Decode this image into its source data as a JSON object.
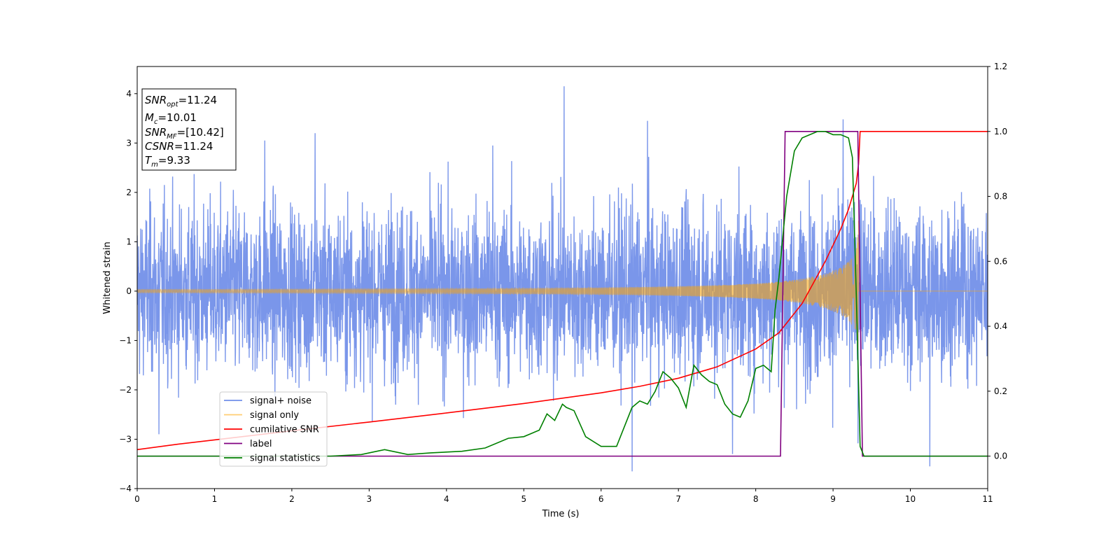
{
  "chart_data": {
    "type": "line",
    "xlabel": "Time (s)",
    "ylabel": "Whitened strain",
    "xlim": [
      0,
      11
    ],
    "ylim": [
      -4.0,
      4.55
    ],
    "y2lim": [
      -0.1,
      1.2
    ],
    "xticks": [
      0,
      1,
      2,
      3,
      4,
      5,
      6,
      7,
      8,
      9,
      10,
      11
    ],
    "yticks": [
      -4,
      -3,
      -2,
      -1,
      0,
      1,
      2,
      3,
      4
    ],
    "y2ticks": [
      "0.0",
      "0.2",
      "0.4",
      "0.6",
      "0.8",
      "1.0",
      "1.2"
    ],
    "legend_position": "lower-left",
    "annotation": {
      "lines": [
        {
          "sym": "SNR",
          "sub": "opt",
          "val": "=11.24"
        },
        {
          "sym": "M",
          "sub": "c",
          "val": "=10.01"
        },
        {
          "sym": "SNR",
          "sub": "MF",
          "val": "=[10.42]"
        },
        {
          "sym": "CSNR",
          "sub": "",
          "val": "=11.24"
        },
        {
          "sym": "T",
          "sub": "m",
          "val": "=9.33"
        }
      ]
    },
    "series": [
      {
        "name": "signal+ noise",
        "color": "#4169e1",
        "axis": "left",
        "description_points": {
          "noise_sigma": 0.85,
          "min_approx": -3.65,
          "max_approx": 4.15,
          "spikes": [
            [
              5.52,
              4.15
            ],
            [
              6.4,
              -3.65
            ],
            [
              9.13,
              3.48
            ],
            [
              0.28,
              -2.9
            ],
            [
              7.7,
              -3.3
            ],
            [
              10.25,
              -3.55
            ],
            [
              2.3,
              3.2
            ],
            [
              4.6,
              2.95
            ],
            [
              6.6,
              3.45
            ],
            [
              1.65,
              3.05
            ]
          ]
        }
      },
      {
        "name": "signal only",
        "color": "#ffa500",
        "axis": "left",
        "x": [
          0,
          1,
          2,
          3,
          4,
          5,
          6,
          6.5,
          7,
          7.5,
          8,
          8.3,
          8.6,
          8.9,
          9.1,
          9.2,
          9.3,
          9.33
        ],
        "amplitude": [
          0.035,
          0.037,
          0.04,
          0.044,
          0.05,
          0.058,
          0.072,
          0.082,
          0.097,
          0.12,
          0.155,
          0.19,
          0.25,
          0.35,
          0.48,
          0.6,
          0.8,
          1.55
        ]
      },
      {
        "name": "cumilative SNR",
        "color": "#ff0000",
        "axis": "right",
        "x": [
          0,
          0.5,
          1,
          2,
          3,
          4,
          5,
          6,
          6.5,
          7,
          7.5,
          8,
          8.3,
          8.6,
          8.9,
          9.1,
          9.2,
          9.3,
          9.33,
          9.35,
          11
        ],
        "y": [
          0.02,
          0.036,
          0.05,
          0.078,
          0.105,
          0.133,
          0.162,
          0.195,
          0.215,
          0.24,
          0.275,
          0.33,
          0.38,
          0.47,
          0.6,
          0.7,
          0.76,
          0.84,
          0.9,
          1.0,
          1.0
        ]
      },
      {
        "name": "label",
        "color": "#800080",
        "axis": "right",
        "x": [
          0,
          8.32,
          8.38,
          9.32,
          9.38,
          11
        ],
        "y": [
          0,
          0,
          1,
          1,
          0,
          0
        ]
      },
      {
        "name": "signal statistics",
        "color": "#008000",
        "axis": "right",
        "x": [
          0,
          1,
          2,
          2.5,
          2.9,
          3.2,
          3.5,
          3.8,
          4.2,
          4.5,
          4.8,
          5.0,
          5.2,
          5.3,
          5.4,
          5.5,
          5.55,
          5.65,
          5.8,
          6.0,
          6.2,
          6.4,
          6.5,
          6.6,
          6.7,
          6.8,
          6.9,
          7.0,
          7.1,
          7.2,
          7.3,
          7.4,
          7.5,
          7.6,
          7.7,
          7.8,
          7.9,
          8.0,
          8.1,
          8.2,
          8.25,
          8.3,
          8.4,
          8.5,
          8.6,
          8.7,
          8.8,
          8.9,
          9.0,
          9.1,
          9.2,
          9.25,
          9.3,
          9.35,
          9.4,
          11
        ],
        "y": [
          0.0,
          0.0,
          0.0,
          0.0,
          0.005,
          0.02,
          0.005,
          0.01,
          0.015,
          0.025,
          0.055,
          0.06,
          0.08,
          0.13,
          0.11,
          0.16,
          0.15,
          0.14,
          0.06,
          0.03,
          0.03,
          0.15,
          0.17,
          0.16,
          0.2,
          0.26,
          0.24,
          0.21,
          0.15,
          0.28,
          0.25,
          0.23,
          0.22,
          0.16,
          0.13,
          0.12,
          0.17,
          0.27,
          0.28,
          0.26,
          0.45,
          0.55,
          0.8,
          0.94,
          0.98,
          0.99,
          1.0,
          1.0,
          0.99,
          0.99,
          0.98,
          0.92,
          0.5,
          0.03,
          0.0,
          0.0
        ]
      }
    ]
  }
}
